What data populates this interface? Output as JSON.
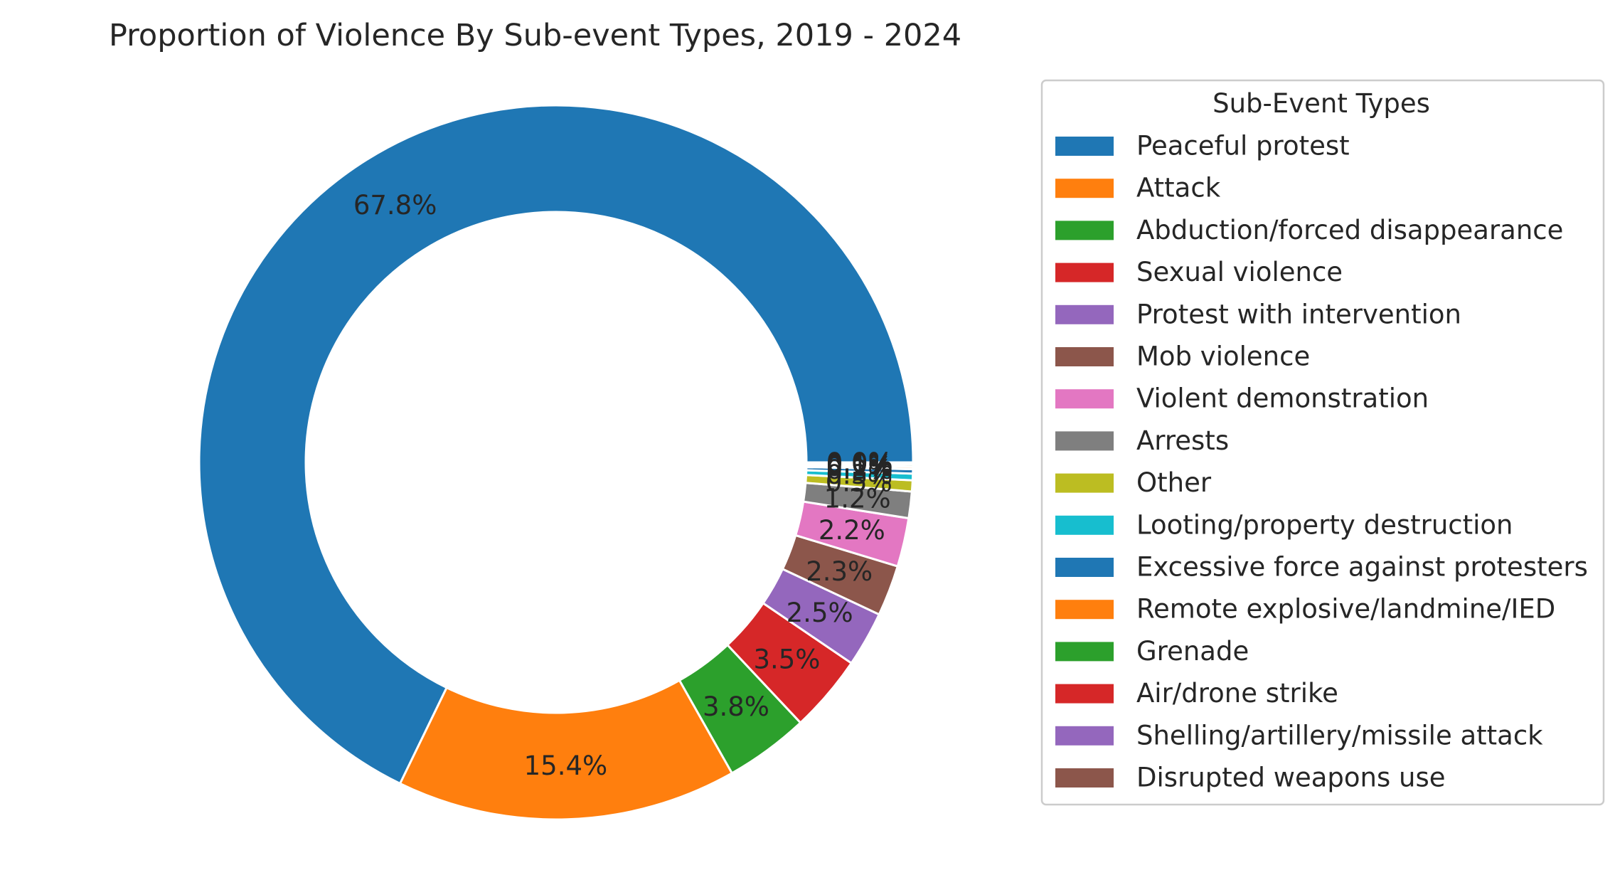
{
  "chart_data": {
    "type": "pie",
    "title": "Proportion of Violence By Sub-event Types, 2019 - 2024",
    "legend_title": "Sub-Event Types",
    "legend_position": "right",
    "donut": true,
    "categories": [
      "Peaceful protest",
      "Attack",
      "Abduction/forced disappearance",
      "Sexual violence",
      "Protest with intervention",
      "Mob violence",
      "Violent demonstration",
      "Arrests",
      "Other",
      "Looting/property destruction",
      "Excessive force against protesters",
      "Remote explosive/landmine/IED",
      "Grenade",
      "Air/drone strike",
      "Shelling/artillery/missile attack",
      "Disrupted weapons use"
    ],
    "values": [
      67.8,
      15.4,
      3.8,
      3.5,
      2.5,
      2.3,
      2.2,
      1.2,
      0.5,
      0.3,
      0.2,
      0.1,
      0.1,
      0.05,
      0.03,
      0.02
    ],
    "labels": [
      "67.8%",
      "15.4%",
      "3.8%",
      "3.5%",
      "2.5%",
      "2.3%",
      "2.2%",
      "1.2%",
      "0.5%",
      "0.3%",
      "0.2%",
      "0.1%",
      "0.1%",
      "0.0%",
      "0.0%",
      "0.0%"
    ],
    "colors": [
      "#1f77b4",
      "#ff7f0e",
      "#2ca02c",
      "#d62728",
      "#9467bd",
      "#8c564b",
      "#e377c2",
      "#7f7f7f",
      "#bcbd22",
      "#17becf",
      "#1f77b4",
      "#ff7f0e",
      "#2ca02c",
      "#d62728",
      "#9467bd",
      "#8c564b"
    ]
  }
}
